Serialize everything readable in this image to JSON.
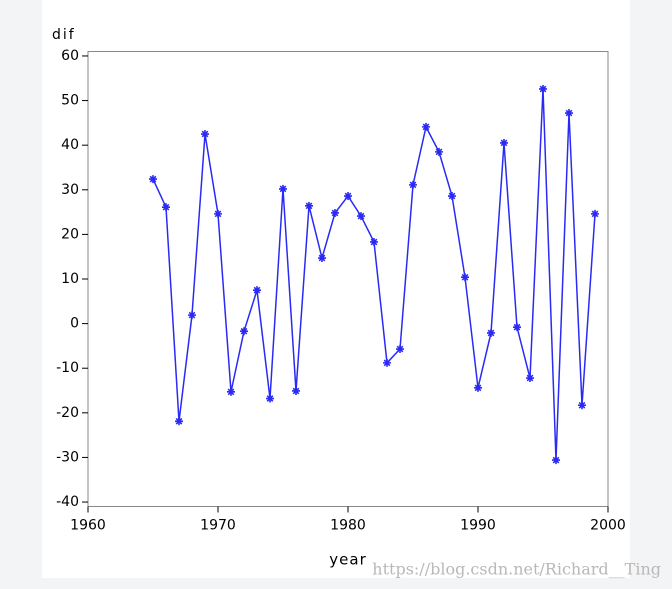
{
  "chart_data": {
    "type": "line",
    "x_label": "year",
    "y_label": "dif",
    "x": [
      1965,
      1966,
      1967,
      1968,
      1969,
      1970,
      1971,
      1972,
      1973,
      1974,
      1975,
      1976,
      1977,
      1978,
      1979,
      1980,
      1981,
      1982,
      1983,
      1984,
      1985,
      1986,
      1987,
      1988,
      1989,
      1990,
      1991,
      1992,
      1993,
      1994,
      1995,
      1996,
      1997,
      1998,
      1999
    ],
    "values": [
      32.4,
      26.1,
      -21.9,
      1.9,
      42.5,
      24.6,
      -15.3,
      -1.7,
      7.5,
      -16.8,
      30.2,
      -15.1,
      26.4,
      14.7,
      24.8,
      28.6,
      24.1,
      18.3,
      -8.8,
      -5.7,
      31.1,
      44.1,
      38.5,
      28.6,
      10.4,
      -14.4,
      -2.1,
      40.5,
      -0.8,
      -12.2,
      52.6,
      -30.6,
      47.2,
      -18.3,
      24.6
    ],
    "color": "#2a2af5",
    "xlim": [
      1960,
      2000
    ],
    "xticks": [
      1960,
      1970,
      1980,
      1990,
      2000
    ],
    "ylim": [
      -41,
      61
    ],
    "yticks": [
      -40,
      -30,
      -20,
      -10,
      0,
      10,
      20,
      30,
      40,
      50,
      60
    ]
  },
  "watermark": "https://blog.csdn.net/Richard__Ting"
}
